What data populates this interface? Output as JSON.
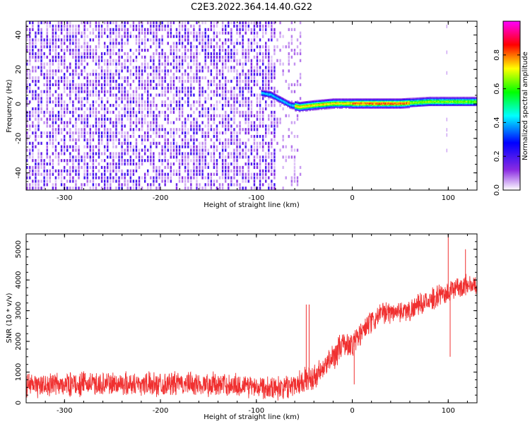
{
  "title": "C2E3.2022.364.14.40.G22",
  "chart_data": [
    {
      "type": "heatmap",
      "xlabel": "Height of straight line (km)",
      "ylabel": "Frequency (Hz)",
      "xlim": [
        -340,
        130
      ],
      "ylim": [
        -50,
        48
      ],
      "xticks": [
        -300,
        -200,
        -100,
        0,
        100
      ],
      "yticks": [
        -40,
        -20,
        0,
        20,
        40
      ],
      "colorbar": {
        "label": "Normalized spectral amplitude",
        "range": [
          0,
          1
        ],
        "ticks": [
          0.0,
          0.2,
          0.4,
          0.6,
          0.8
        ],
        "colormap": [
          "#ffffff",
          "#8a2be2",
          "#0000ff",
          "#00ffff",
          "#00ff00",
          "#ffff00",
          "#ff0000",
          "#ff00ff"
        ]
      },
      "features": {
        "noise_region_x": [
          -340,
          -52
        ],
        "signal_line_start_x": -95,
        "signal_line_freq": [
          {
            "x": -95,
            "f": 6
          },
          {
            "x": -85,
            "f": 5
          },
          {
            "x": -75,
            "f": 2
          },
          {
            "x": -65,
            "f": -1
          },
          {
            "x": -55,
            "f": -2
          },
          {
            "x": -40,
            "f": -1
          },
          {
            "x": -20,
            "f": 0
          },
          {
            "x": 0,
            "f": 0
          },
          {
            "x": 50,
            "f": 0
          },
          {
            "x": 80,
            "f": 1
          },
          {
            "x": 100,
            "f": 1
          },
          {
            "x": 130,
            "f": 1
          }
        ]
      }
    },
    {
      "type": "line",
      "xlabel": "Height of straight line (km)",
      "ylabel": "SNR (10 * v/v)",
      "xlim": [
        -340,
        130
      ],
      "ylim": [
        0,
        5500
      ],
      "xticks": [
        -300,
        -200,
        -100,
        0,
        100
      ],
      "yticks": [
        0,
        1000,
        2000,
        3000,
        4000,
        5000
      ],
      "series": [
        {
          "color": "#f03030",
          "trend": [
            {
              "x": -340,
              "y": 550
            },
            {
              "x": -300,
              "y": 600
            },
            {
              "x": -250,
              "y": 620
            },
            {
              "x": -200,
              "y": 620
            },
            {
              "x": -150,
              "y": 600
            },
            {
              "x": -100,
              "y": 550
            },
            {
              "x": -70,
              "y": 500
            },
            {
              "x": -55,
              "y": 700
            },
            {
              "x": -40,
              "y": 800
            },
            {
              "x": -30,
              "y": 1100
            },
            {
              "x": -20,
              "y": 1500
            },
            {
              "x": -10,
              "y": 1900
            },
            {
              "x": 0,
              "y": 1900
            },
            {
              "x": 10,
              "y": 2300
            },
            {
              "x": 20,
              "y": 2600
            },
            {
              "x": 30,
              "y": 2900
            },
            {
              "x": 40,
              "y": 2950
            },
            {
              "x": 50,
              "y": 3000
            },
            {
              "x": 60,
              "y": 3000
            },
            {
              "x": 70,
              "y": 3200
            },
            {
              "x": 80,
              "y": 3300
            },
            {
              "x": 90,
              "y": 3500
            },
            {
              "x": 100,
              "y": 3600
            },
            {
              "x": 110,
              "y": 3750
            },
            {
              "x": 120,
              "y": 3850
            },
            {
              "x": 130,
              "y": 3800
            }
          ],
          "spikes": [
            {
              "x": -48,
              "y": 3200
            },
            {
              "x": -45,
              "y": 3200
            },
            {
              "x": 2,
              "y": 600
            },
            {
              "x": 100,
              "y": 5500
            },
            {
              "x": 102,
              "y": 1500
            },
            {
              "x": 118,
              "y": 5000
            }
          ]
        }
      ]
    }
  ]
}
